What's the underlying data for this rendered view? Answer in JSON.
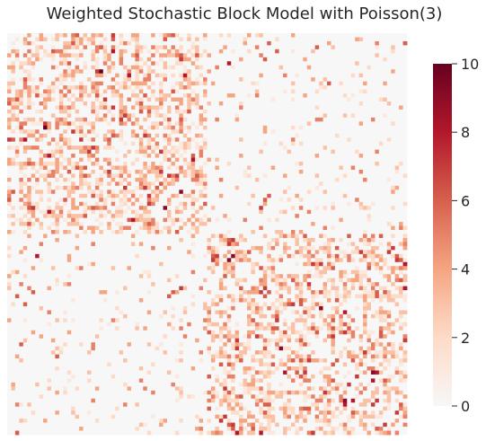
{
  "chart_data": {
    "type": "heatmap",
    "title": "Weighted Stochastic Block Model with Poisson(3)",
    "rows": 100,
    "cols": 100,
    "blocks": {
      "community_sizes": [
        50,
        50
      ],
      "within_block_edge_probability": 0.5,
      "between_block_edge_probability": 0.1,
      "edge_weight_distribution": "Poisson(3)"
    },
    "value_range": [
      0,
      10
    ],
    "colorbar": {
      "ticks": [
        0,
        2,
        4,
        6,
        8,
        10
      ],
      "tick_labels": [
        "0",
        "2",
        "4",
        "6",
        "8",
        "10"
      ],
      "colormap": "RdBu_r (positive half)"
    },
    "colors": {
      "zero": "#f7f7f7",
      "low": "#fddbc7",
      "mid": "#f4a582",
      "high": "#d6604d",
      "very_high": "#b2182b",
      "max": "#67001f"
    },
    "axis_ticks_shown": false,
    "grid": false
  }
}
